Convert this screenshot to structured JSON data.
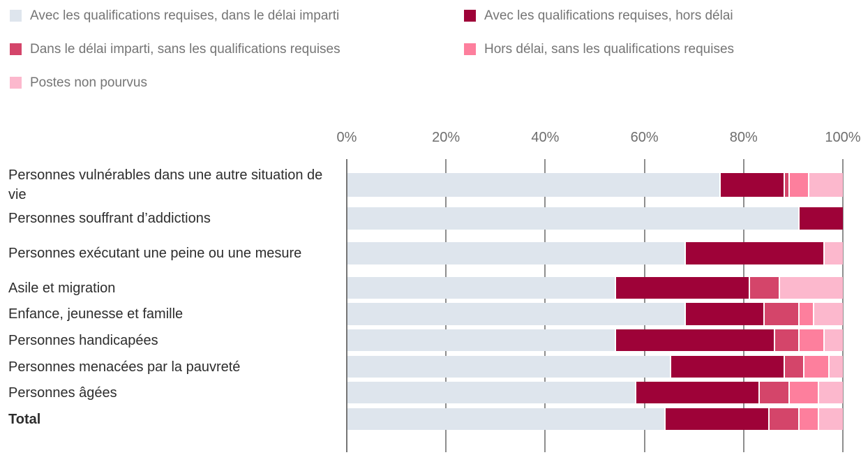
{
  "legend": {
    "items": [
      {
        "label": "Avec les qualifications requises, dans le délai imparti",
        "color": "#dee5ed",
        "icon": "swatch-light-blue"
      },
      {
        "label": "Avec les qualifications requises, hors délai",
        "color": "#9e0238",
        "icon": "swatch-dark-maroon"
      },
      {
        "label": "Dans le délai imparti, sans les qualifications requises",
        "color": "#d4456a",
        "icon": "swatch-crimson"
      },
      {
        "label": "Hors délai, sans les qualifications requises",
        "color": "#fd7f9d",
        "icon": "swatch-pink"
      },
      {
        "label": "Postes non pourvus",
        "color": "#fcb8cd",
        "icon": "swatch-light-pink"
      }
    ]
  },
  "chart_data": {
    "type": "bar",
    "orientation": "horizontal",
    "stacked": true,
    "unit": "percent",
    "title": "",
    "xlabel": "",
    "ylabel": "",
    "xlim": [
      0,
      100
    ],
    "x_tick_values": [
      0,
      20,
      40,
      60,
      80,
      100
    ],
    "x_tick_labels": [
      "0%",
      "20%",
      "40%",
      "60%",
      "80%",
      "100%"
    ],
    "grid": true,
    "legend_position": "top",
    "categories": [
      "Personnes vulnérables dans une autre situation de vie",
      "Personnes souffrant d’addictions",
      "Personnes exécutant une peine ou une mesure",
      "Asile et migration",
      "Enfance, jeunesse et famille",
      "Personnes handicapées",
      "Personnes menacées par la pauvreté",
      "Personnes âgées",
      "Total"
    ],
    "series": [
      {
        "name": "Avec les qualifications requises, dans le délai imparti",
        "color": "#dee5ed",
        "values": [
          75,
          91,
          68,
          54,
          68,
          54,
          65,
          58,
          64
        ]
      },
      {
        "name": "Avec les qualifications requises, hors délai",
        "color": "#9e0238",
        "values": [
          13,
          9,
          28,
          27,
          16,
          32,
          23,
          25,
          21
        ]
      },
      {
        "name": "Dans le délai imparti, sans les qualifications requises",
        "color": "#d4456a",
        "values": [
          1,
          0,
          0,
          6,
          7,
          5,
          4,
          6,
          6
        ]
      },
      {
        "name": "Hors délai, sans les qualifications requises",
        "color": "#fd7f9d",
        "values": [
          4,
          0,
          0,
          0,
          3,
          5,
          5,
          6,
          4
        ]
      },
      {
        "name": "Postes non pourvus",
        "color": "#fcb8cd",
        "values": [
          7,
          0,
          4,
          13,
          6,
          4,
          3,
          5,
          5
        ]
      }
    ],
    "colors": {
      "gridline": "#8e8e8e",
      "axis_line": "#757575",
      "tick_label": "#6e6e6e",
      "legend_text": "#757575",
      "category_text": "#2d2d2d"
    }
  }
}
